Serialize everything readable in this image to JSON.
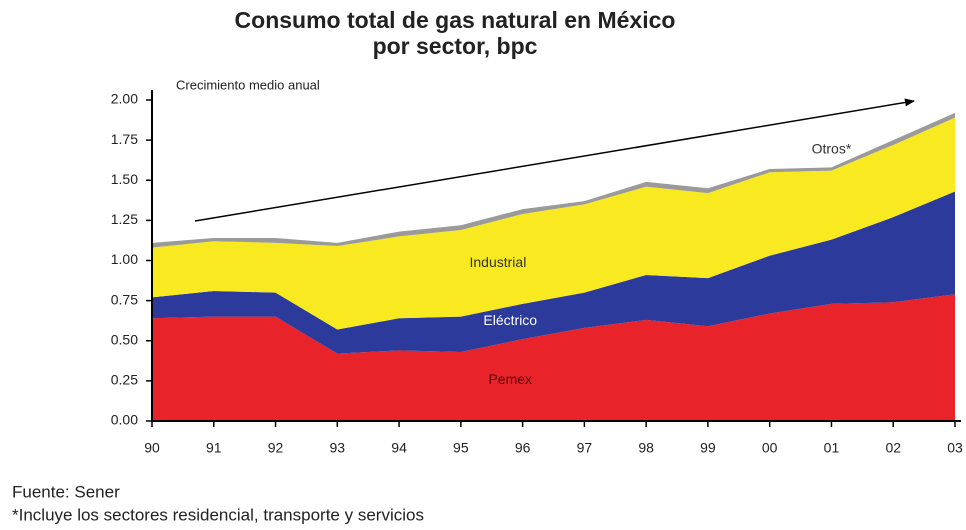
{
  "chart_data": {
    "type": "stacked_area",
    "title": "Consumo total de gas natural en México",
    "subtitle": "por sector, bpc",
    "annotation": "Crecimiento medio anual",
    "source": "Fuente: Sener",
    "note": "*Incluye los sectores residencial, transporte y servicios",
    "categories": [
      "90",
      "91",
      "92",
      "93",
      "94",
      "95",
      "96",
      "97",
      "98",
      "99",
      "00",
      "01",
      "02",
      "03"
    ],
    "series": [
      {
        "name": "Pemex",
        "color": "#e8232a",
        "values": [
          0.64,
          0.65,
          0.65,
          0.42,
          0.44,
          0.43,
          0.51,
          0.58,
          0.63,
          0.59,
          0.67,
          0.73,
          0.74,
          0.79
        ]
      },
      {
        "name": "Eléctrico",
        "color": "#2b3a9b",
        "values": [
          0.13,
          0.16,
          0.15,
          0.15,
          0.2,
          0.22,
          0.22,
          0.22,
          0.28,
          0.3,
          0.36,
          0.4,
          0.53,
          0.64
        ]
      },
      {
        "name": "Industrial",
        "color": "#f8e920",
        "values": [
          0.31,
          0.31,
          0.31,
          0.52,
          0.51,
          0.54,
          0.56,
          0.55,
          0.55,
          0.53,
          0.52,
          0.43,
          0.45,
          0.46
        ]
      },
      {
        "name": "Otros*",
        "color": "#9a9a9a",
        "values": [
          0.03,
          0.02,
          0.03,
          0.02,
          0.03,
          0.03,
          0.03,
          0.02,
          0.03,
          0.03,
          0.02,
          0.02,
          0.03,
          0.03
        ]
      }
    ],
    "ylim": [
      0,
      2
    ],
    "yticks": [
      {
        "value": 0,
        "label": "0.00"
      },
      {
        "value": 0.25,
        "label": "0.25"
      },
      {
        "value": 0.5,
        "label": "0.50"
      },
      {
        "value": 0.75,
        "label": "0.75"
      },
      {
        "value": 1,
        "label": "1.00"
      },
      {
        "value": 1.25,
        "label": "1.25"
      },
      {
        "value": 1.5,
        "label": "1.50"
      },
      {
        "value": 1.75,
        "label": "1.75"
      },
      {
        "value": 2,
        "label": "2.00"
      }
    ]
  }
}
